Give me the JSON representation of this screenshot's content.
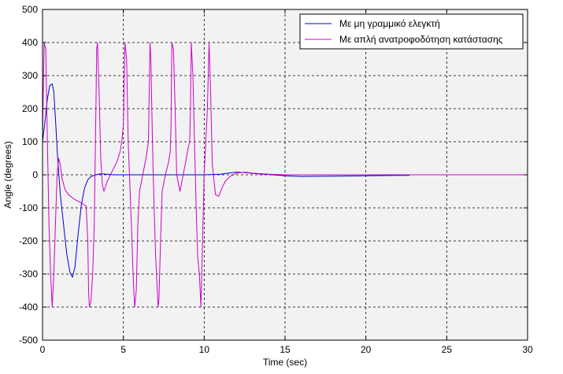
{
  "chart_data": {
    "type": "line",
    "xlabel": "Time (sec)",
    "ylabel": "Angle (degrees)",
    "xlim": [
      0,
      30
    ],
    "ylim": [
      -500,
      500
    ],
    "xticks": [
      0,
      5,
      10,
      15,
      20,
      25,
      30
    ],
    "yticks": [
      -500,
      -400,
      -300,
      -200,
      -100,
      0,
      100,
      200,
      300,
      400,
      500
    ],
    "grid": true,
    "legend_position": "top-right",
    "series": [
      {
        "name": "Με μη γραμμικό ελεγκτή",
        "color": "#0000cc",
        "x": [
          0,
          0.15,
          0.3,
          0.45,
          0.6,
          0.7,
          0.8,
          0.95,
          1.1,
          1.3,
          1.5,
          1.7,
          1.85,
          2.0,
          2.2,
          2.4,
          2.6,
          2.8,
          3.0,
          3.3,
          3.6,
          4.0,
          4.4,
          5.0,
          8.0,
          10.0,
          11.0,
          11.5,
          12.0,
          12.5,
          13.0,
          14.0,
          15.0,
          16.0,
          18.0,
          20.0,
          22.0,
          22.7
        ],
        "y": [
          100,
          160,
          230,
          270,
          275,
          250,
          170,
          40,
          -60,
          -150,
          -240,
          -295,
          -310,
          -280,
          -180,
          -90,
          -40,
          -15,
          -5,
          0,
          3,
          2,
          0,
          0,
          0,
          0,
          2,
          5,
          8,
          7,
          4,
          1,
          -3,
          -5,
          -4,
          -3,
          -2,
          -2
        ]
      },
      {
        "name": "Με απλή ανατροφοδότηση κατάστασης",
        "color": "#cc00cc",
        "x": [
          0,
          0.1,
          0.2,
          0.3,
          0.4,
          0.5,
          0.6,
          0.7,
          0.8,
          0.9,
          1.0,
          1.1,
          1.2,
          1.4,
          1.6,
          2.0,
          2.4,
          2.7,
          2.8,
          2.85,
          2.9,
          3.0,
          3.1,
          3.2,
          3.3,
          3.35,
          3.4,
          3.5,
          3.6,
          3.7,
          3.8,
          4.0,
          4.3,
          4.6,
          4.8,
          4.9,
          5.0,
          5.1,
          5.2,
          5.3,
          5.5,
          5.6,
          5.7,
          5.8,
          5.9,
          6.0,
          6.2,
          6.4,
          6.55,
          6.6,
          6.65,
          6.7,
          6.8,
          6.9,
          7.0,
          7.1,
          7.15,
          7.2,
          7.3,
          7.4,
          7.6,
          7.8,
          7.9,
          7.95,
          8.0,
          8.1,
          8.2,
          8.3,
          8.5,
          8.7,
          8.9,
          9.0,
          9.1,
          9.15,
          9.2,
          9.3,
          9.4,
          9.5,
          9.6,
          9.7,
          9.8,
          9.9,
          10.0,
          10.05,
          10.1,
          10.2,
          10.3,
          10.4,
          10.5,
          10.7,
          10.9,
          11.1,
          11.3,
          11.6,
          12.0,
          12.5,
          13.0,
          14.0,
          15.0,
          18.0,
          22.0,
          26.0,
          30.0
        ],
        "y": [
          120,
          400,
          380,
          100,
          -150,
          -300,
          -400,
          -300,
          -150,
          0,
          50,
          30,
          -10,
          -45,
          -60,
          -75,
          -85,
          -95,
          -200,
          -350,
          -400,
          -380,
          -300,
          -150,
          200,
          380,
          400,
          250,
          50,
          -30,
          -50,
          -20,
          10,
          40,
          70,
          100,
          150,
          400,
          350,
          100,
          -150,
          -300,
          -400,
          -350,
          -150,
          -50,
          0,
          50,
          100,
          250,
          400,
          350,
          100,
          -100,
          -250,
          -350,
          -400,
          -380,
          -200,
          -50,
          0,
          40,
          70,
          150,
          400,
          380,
          200,
          0,
          -50,
          0,
          50,
          80,
          100,
          200,
          400,
          300,
          100,
          -100,
          -250,
          -300,
          -400,
          -200,
          10,
          50,
          100,
          200,
          400,
          250,
          30,
          -60,
          -65,
          -40,
          -20,
          -5,
          5,
          8,
          5,
          2,
          0,
          0,
          0,
          0,
          0
        ]
      }
    ]
  }
}
